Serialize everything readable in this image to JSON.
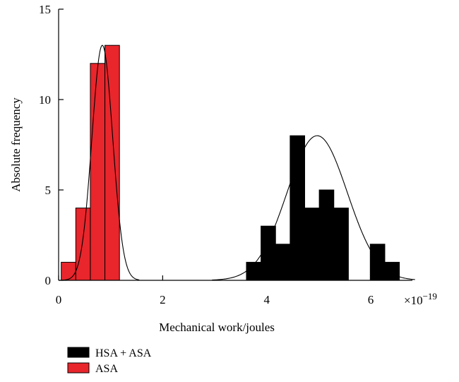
{
  "chart_data": {
    "type": "bar",
    "title": "",
    "xlabel": "Mechanical work/joules",
    "ylabel": "Absolute frequency",
    "x_multiplier_label": "×10",
    "x_multiplier_exponent": "−19",
    "xlim": [
      0,
      6.8
    ],
    "ylim": [
      0,
      15
    ],
    "x_ticks": [
      0,
      2,
      4,
      6
    ],
    "y_ticks": [
      0,
      5,
      10,
      15
    ],
    "grid": false,
    "legend_position": "bottom-left",
    "bin_width": 0.28,
    "series": [
      {
        "name": "HSA + ASA",
        "color": "#000000",
        "bins": [
          {
            "x": 3.75,
            "count": 1
          },
          {
            "x": 4.03,
            "count": 3
          },
          {
            "x": 4.31,
            "count": 2
          },
          {
            "x": 4.59,
            "count": 8
          },
          {
            "x": 4.87,
            "count": 4
          },
          {
            "x": 5.15,
            "count": 5
          },
          {
            "x": 5.43,
            "count": 4
          },
          {
            "x": 6.13,
            "count": 2
          },
          {
            "x": 6.41,
            "count": 1
          }
        ],
        "fit": {
          "type": "normal",
          "mean": 4.97,
          "sd": 0.58,
          "peak": 8.0,
          "x_range": [
            2.95,
            6.85
          ]
        }
      },
      {
        "name": "ASA",
        "color": "#e8262c",
        "bins": [
          {
            "x": 0.19,
            "count": 1
          },
          {
            "x": 0.47,
            "count": 4
          },
          {
            "x": 0.75,
            "count": 12
          },
          {
            "x": 1.03,
            "count": 13
          }
        ],
        "fit": {
          "type": "normal",
          "mean": 0.84,
          "sd": 0.2,
          "peak": 13.0,
          "x_range": [
            0.05,
            1.55
          ]
        }
      }
    ]
  },
  "legend": [
    {
      "label": "HSA + ASA",
      "color": "#000000"
    },
    {
      "label": "ASA",
      "color": "#e8262c"
    }
  ]
}
